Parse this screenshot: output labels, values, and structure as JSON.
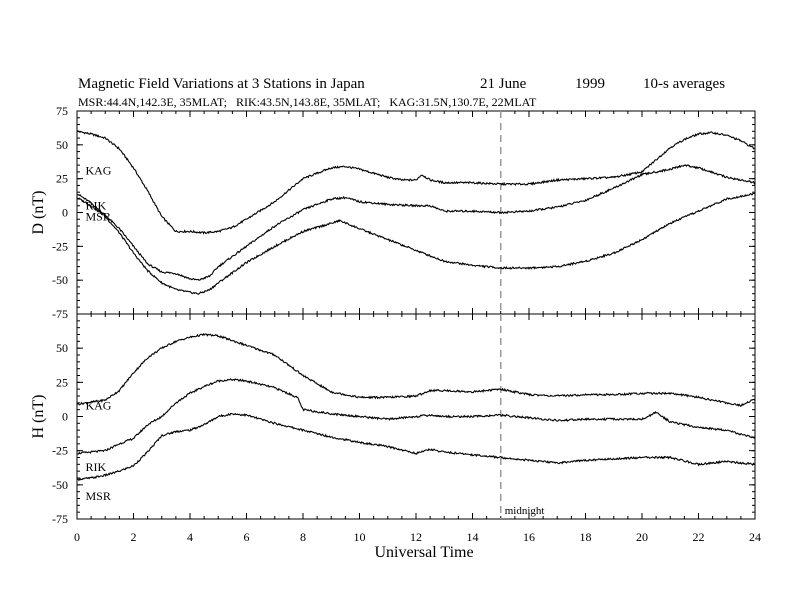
{
  "chart_data": {
    "type": "line",
    "title": "Magnetic Field Variations at 3 Stations in Japan",
    "date_label": "21 June",
    "year_label": "1999",
    "averaging_label": "10-s averages",
    "subtitle": "MSR:44.4N,142.3E, 35MLAT;   RIK:43.5N,143.8E, 35MLAT;   KAG:31.5N,130.7E, 22MLAT",
    "xlabel": "Universal Time",
    "xlim": [
      0,
      24
    ],
    "x_ticks": [
      "0",
      "2",
      "4",
      "6",
      "8",
      "10",
      "12",
      "14",
      "16",
      "18",
      "20",
      "22",
      "24"
    ],
    "grid": false,
    "marker": {
      "x": 15,
      "label": "midnight"
    },
    "panels": [
      {
        "id": "D",
        "ylabel": "D (nT)",
        "ylim": [
          -75,
          75
        ],
        "y_ticks": [
          "75",
          "50",
          "25",
          "0",
          "-25",
          "-50",
          "-75"
        ],
        "series": [
          {
            "name": "KAG",
            "label_x": 0.3,
            "label_y": 31,
            "x": [
              0,
              0.5,
              1,
              1.5,
              2,
              2.5,
              3,
              3.5,
              4,
              4.5,
              5,
              5.5,
              6,
              7,
              8,
              9,
              9.5,
              10,
              10.5,
              11,
              11.5,
              12,
              12.2,
              12.5,
              13,
              14,
              15,
              16,
              17,
              18,
              19,
              20,
              21,
              21.5,
              22,
              22.5,
              23,
              23.5,
              24
            ],
            "y": [
              60,
              58,
              55,
              47,
              33,
              16,
              -3,
              -14,
              -14,
              -15,
              -14,
              -11,
              -5,
              8,
              25,
              33,
              34,
              32,
              29,
              26,
              24,
              24,
              28,
              24,
              22,
              22,
              21,
              21,
              24,
              25,
              26,
              30,
              48,
              54,
              58,
              59,
              57,
              53,
              47
            ]
          },
          {
            "name": "RIK",
            "label_x": 0.3,
            "label_y": 5,
            "x": [
              0,
              0.5,
              1,
              1.5,
              2,
              2.5,
              3,
              3.5,
              4,
              4.3,
              4.7,
              5,
              6,
              7,
              8,
              9,
              9.5,
              10,
              10.5,
              11,
              12,
              12.5,
              13,
              14,
              15,
              16,
              17,
              18,
              19,
              20,
              21,
              21.5,
              22,
              23,
              24
            ],
            "y": [
              14,
              7,
              -2,
              -12,
              -25,
              -38,
              -44,
              -45,
              -49,
              -50,
              -47,
              -40,
              -25,
              -10,
              2,
              10,
              11,
              8,
              7,
              6,
              5,
              5,
              1,
              1,
              0,
              1,
              4,
              9,
              18,
              28,
              32,
              35,
              33,
              26,
              22
            ]
          },
          {
            "name": "MSR",
            "label_x": 0.3,
            "label_y": -3,
            "x": [
              0,
              0.5,
              1,
              1.5,
              2,
              2.5,
              3,
              3.5,
              4,
              4.3,
              4.7,
              5,
              6,
              7,
              8,
              9,
              9.3,
              10,
              11,
              12,
              12.5,
              13,
              14,
              15,
              16,
              17,
              18,
              19,
              20,
              21,
              22,
              23,
              24
            ],
            "y": [
              11,
              5,
              -3,
              -15,
              -30,
              -43,
              -52,
              -57,
              -59,
              -60,
              -57,
              -52,
              -37,
              -25,
              -14,
              -8,
              -6,
              -12,
              -20,
              -28,
              -32,
              -36,
              -39,
              -41,
              -41,
              -40,
              -36,
              -30,
              -20,
              -8,
              1,
              10,
              14
            ]
          }
        ]
      },
      {
        "id": "H",
        "ylabel": "H (nT)",
        "ylim": [
          -75,
          75
        ],
        "y_ticks": [
          "75",
          "50",
          "25",
          "0",
          "-25",
          "-50",
          "-75"
        ],
        "series": [
          {
            "name": "KAG",
            "label_x": 0.3,
            "label_y": 8,
            "x": [
              0,
              1,
              1.5,
              2,
              2.5,
              3,
              3.5,
              4,
              4.5,
              5,
              6,
              7,
              8,
              9,
              10,
              11,
              12,
              12.5,
              13,
              14,
              15,
              16,
              17,
              18,
              19,
              20,
              21,
              22,
              23,
              23.5,
              24
            ],
            "y": [
              9,
              12,
              19,
              32,
              43,
              50,
              55,
              58,
              60,
              59,
              52,
              45,
              30,
              18,
              14,
              14,
              15,
              19,
              19,
              18,
              20,
              16,
              15,
              16,
              16,
              17,
              17,
              14,
              10,
              8,
              13
            ]
          },
          {
            "name": "RIK",
            "label_x": 0.3,
            "label_y": -37,
            "x": [
              0,
              0.5,
              1,
              1.5,
              2,
              2.5,
              3,
              3.5,
              4,
              4.5,
              5,
              5.5,
              6,
              7,
              7.8,
              8,
              9,
              10,
              11,
              12,
              12.5,
              13,
              14,
              15,
              16,
              17,
              18,
              19,
              20,
              20.5,
              21,
              22,
              23,
              24
            ],
            "y": [
              -27,
              -26,
              -25,
              -20,
              -16,
              -6,
              0,
              10,
              17,
              22,
              26,
              27,
              26,
              21,
              14,
              5,
              2,
              0,
              -2,
              0,
              1,
              0,
              0,
              1,
              -1,
              -3,
              -2,
              -2,
              -2,
              3,
              -4,
              -8,
              -10,
              -16
            ]
          },
          {
            "name": "MSR",
            "label_x": 0.3,
            "label_y": -58,
            "x": [
              0,
              0.5,
              1,
              1.5,
              2,
              2.5,
              3,
              3.5,
              4,
              4.5,
              5,
              5.5,
              6,
              7,
              8,
              9,
              10,
              11,
              12,
              12.5,
              13,
              14,
              15,
              16,
              17,
              18,
              19,
              20,
              21,
              22,
              23,
              24
            ],
            "y": [
              -46,
              -45,
              -43,
              -40,
              -36,
              -26,
              -14,
              -11,
              -10,
              -6,
              0,
              2,
              1,
              -5,
              -10,
              -15,
              -19,
              -22,
              -27,
              -24,
              -26,
              -28,
              -30,
              -32,
              -34,
              -32,
              -31,
              -30,
              -30,
              -35,
              -33,
              -35
            ]
          }
        ]
      }
    ]
  }
}
